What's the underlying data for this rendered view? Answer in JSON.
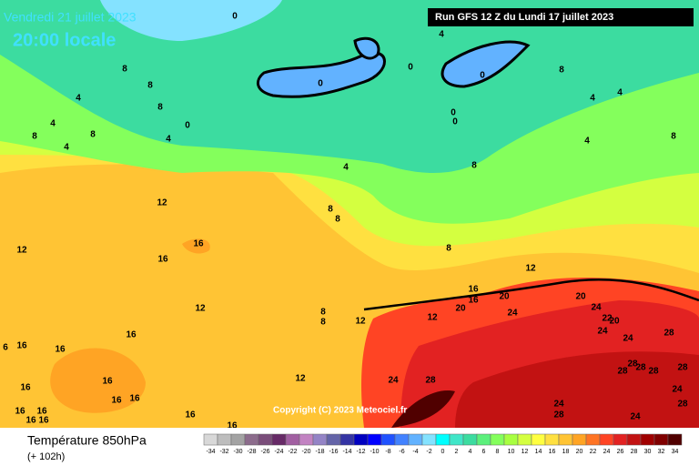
{
  "header": {
    "valid_date": "Vendredi 21 juillet 2023",
    "local_time": "20:00 locale",
    "run": "Run GFS 12 Z du Lundi 17 juillet 2023"
  },
  "copyright": "Copyright (C) 2023 Meteociel.fr",
  "footer": {
    "title": "Température 850hPa",
    "lead": "(+ 102h)"
  },
  "scale": {
    "ticks": [
      -34,
      -32,
      -30,
      -28,
      -26,
      -24,
      -22,
      -20,
      -18,
      -16,
      -14,
      -12,
      -10,
      -8,
      -6,
      -4,
      -2,
      0,
      2,
      4,
      6,
      8,
      10,
      12,
      14,
      16,
      18,
      20,
      22,
      24,
      26,
      28,
      30,
      32,
      34
    ],
    "colors": [
      "#d8d8d8",
      "#bdbdbd",
      "#a3a3a3",
      "#8c6c8c",
      "#7a4d7a",
      "#672a67",
      "#a15fa1",
      "#c283c2",
      "#9484c6",
      "#6464a8",
      "#3434a4",
      "#0000c0",
      "#0000ff",
      "#2052ff",
      "#4282ff",
      "#62b2ff",
      "#84e2ff",
      "#00ffff",
      "#40e6c8",
      "#3cdca0",
      "#5cf07c",
      "#84ff5c",
      "#a8ff40",
      "#d4ff40",
      "#ffff40",
      "#ffe040",
      "#ffc434",
      "#ffa424",
      "#ff7424",
      "#ff4424",
      "#e22222",
      "#c21212",
      "#a00000",
      "#800000",
      "#500000"
    ]
  },
  "contour_labels": [
    0,
    4,
    8,
    8,
    4,
    8,
    4,
    8,
    4,
    8,
    4,
    0,
    0,
    0,
    0,
    0,
    0,
    8,
    4,
    4,
    4,
    8,
    4,
    8,
    12,
    8,
    8,
    16,
    16,
    12,
    8,
    12,
    16,
    16,
    20,
    20,
    20,
    24,
    22,
    20,
    24,
    24,
    12,
    12,
    8,
    8,
    12,
    16,
    16,
    16,
    6,
    16,
    16,
    16,
    24,
    28,
    28,
    28,
    28,
    28,
    24,
    28,
    24,
    28,
    12,
    24,
    28,
    24,
    16,
    16,
    16,
    16,
    16,
    16,
    16,
    28
  ]
}
